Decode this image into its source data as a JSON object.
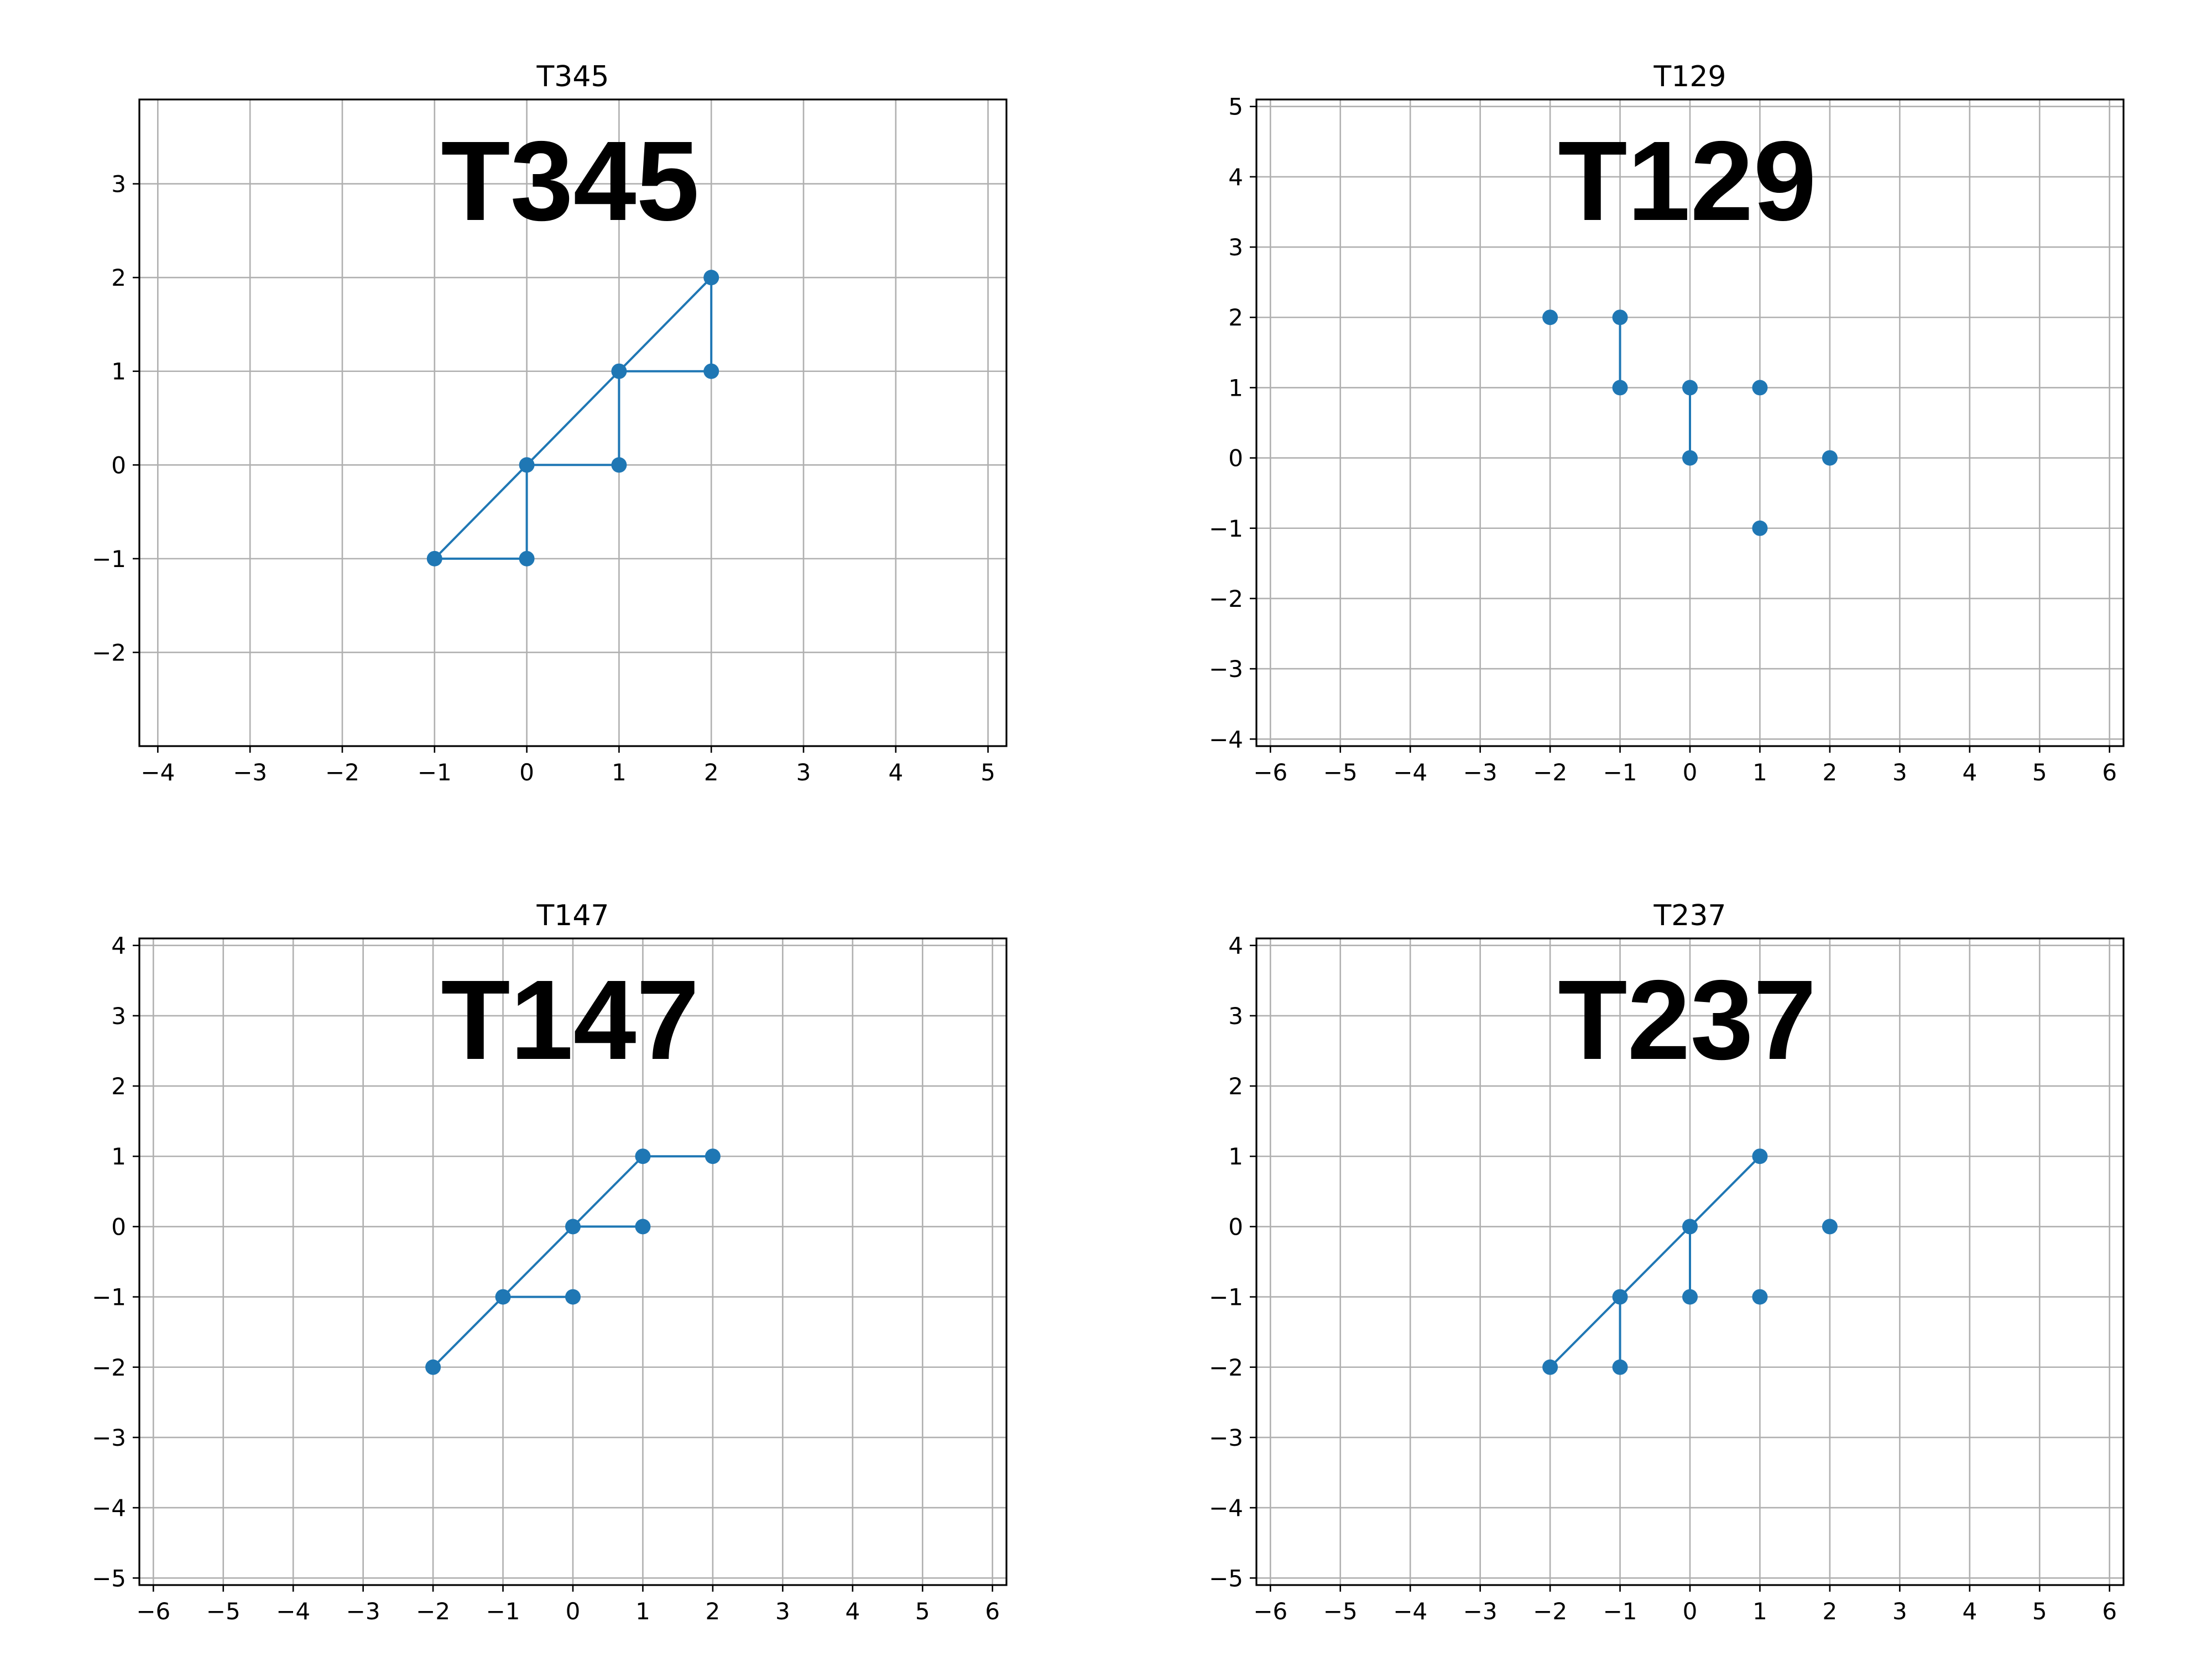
{
  "chart_data": [
    {
      "type": "scatter",
      "title": "T345",
      "overlay_label": "T345",
      "xlim": [
        -4.2,
        5.2
      ],
      "ylim": [
        -3,
        3.9
      ],
      "xticks": [
        -4,
        -3,
        -2,
        -1,
        0,
        1,
        2,
        3,
        4,
        5
      ],
      "yticks": [
        -2,
        -1,
        0,
        1,
        2,
        3
      ],
      "points": [
        [
          -1,
          -1
        ],
        [
          0,
          -1
        ],
        [
          0,
          0
        ],
        [
          1,
          0
        ],
        [
          1,
          1
        ],
        [
          2,
          1
        ],
        [
          2,
          2
        ]
      ],
      "edges": [
        [
          [
            -1,
            -1
          ],
          [
            0,
            -1
          ]
        ],
        [
          [
            -1,
            -1
          ],
          [
            0,
            0
          ]
        ],
        [
          [
            0,
            -1
          ],
          [
            0,
            0
          ]
        ],
        [
          [
            0,
            0
          ],
          [
            1,
            0
          ]
        ],
        [
          [
            0,
            0
          ],
          [
            1,
            1
          ]
        ],
        [
          [
            1,
            0
          ],
          [
            1,
            1
          ]
        ],
        [
          [
            1,
            1
          ],
          [
            2,
            1
          ]
        ],
        [
          [
            1,
            1
          ],
          [
            2,
            2
          ]
        ],
        [
          [
            2,
            1
          ],
          [
            2,
            2
          ]
        ]
      ],
      "grid": true
    },
    {
      "type": "scatter",
      "title": "T129",
      "overlay_label": "T129",
      "xlim": [
        -6.2,
        6.2
      ],
      "ylim": [
        -4.1,
        5.1
      ],
      "xticks": [
        -6,
        -5,
        -4,
        -3,
        -2,
        -1,
        0,
        1,
        2,
        3,
        4,
        5,
        6
      ],
      "yticks": [
        -4,
        -3,
        -2,
        -1,
        0,
        1,
        2,
        3,
        4,
        5
      ],
      "points": [
        [
          -2,
          2
        ],
        [
          -1,
          2
        ],
        [
          -1,
          1
        ],
        [
          0,
          1
        ],
        [
          0,
          0
        ],
        [
          1,
          1
        ],
        [
          2,
          0
        ],
        [
          1,
          -1
        ]
      ],
      "edges": [
        [
          [
            -1,
            2
          ],
          [
            -1,
            1
          ]
        ],
        [
          [
            0,
            1
          ],
          [
            0,
            0
          ]
        ]
      ],
      "grid": true
    },
    {
      "type": "scatter",
      "title": "T147",
      "overlay_label": "T147",
      "xlim": [
        -6.2,
        6.2
      ],
      "ylim": [
        -5.1,
        4.1
      ],
      "xticks": [
        -6,
        -5,
        -4,
        -3,
        -2,
        -1,
        0,
        1,
        2,
        3,
        4,
        5,
        6
      ],
      "yticks": [
        -5,
        -4,
        -3,
        -2,
        -1,
        0,
        1,
        2,
        3,
        4
      ],
      "points": [
        [
          -2,
          -2
        ],
        [
          -1,
          -1
        ],
        [
          0,
          -1
        ],
        [
          0,
          0
        ],
        [
          1,
          0
        ],
        [
          1,
          1
        ],
        [
          2,
          1
        ]
      ],
      "edges": [
        [
          [
            -2,
            -2
          ],
          [
            -1,
            -1
          ]
        ],
        [
          [
            -1,
            -1
          ],
          [
            0,
            -1
          ]
        ],
        [
          [
            -1,
            -1
          ],
          [
            0,
            0
          ]
        ],
        [
          [
            0,
            0
          ],
          [
            1,
            0
          ]
        ],
        [
          [
            0,
            0
          ],
          [
            1,
            1
          ]
        ],
        [
          [
            1,
            1
          ],
          [
            2,
            1
          ]
        ]
      ],
      "grid": true
    },
    {
      "type": "scatter",
      "title": "T237",
      "overlay_label": "T237",
      "xlim": [
        -6.2,
        6.2
      ],
      "ylim": [
        -5.1,
        4.1
      ],
      "xticks": [
        -6,
        -5,
        -4,
        -3,
        -2,
        -1,
        0,
        1,
        2,
        3,
        4,
        5,
        6
      ],
      "yticks": [
        -5,
        -4,
        -3,
        -2,
        -1,
        0,
        1,
        2,
        3,
        4
      ],
      "points": [
        [
          -2,
          -2
        ],
        [
          -1,
          -2
        ],
        [
          -1,
          -1
        ],
        [
          0,
          -1
        ],
        [
          0,
          0
        ],
        [
          1,
          -1
        ],
        [
          1,
          1
        ],
        [
          2,
          0
        ]
      ],
      "edges": [
        [
          [
            -2,
            -2
          ],
          [
            -1,
            -1
          ]
        ],
        [
          [
            -1,
            -2
          ],
          [
            -1,
            -1
          ]
        ],
        [
          [
            -1,
            -1
          ],
          [
            0,
            0
          ]
        ],
        [
          [
            0,
            -1
          ],
          [
            0,
            0
          ]
        ],
        [
          [
            0,
            0
          ],
          [
            1,
            1
          ]
        ]
      ],
      "grid": true
    }
  ],
  "colors": {
    "series": "#1f77b4",
    "grid": "#b0b0b0",
    "axis": "#000000",
    "background": "#ffffff"
  }
}
